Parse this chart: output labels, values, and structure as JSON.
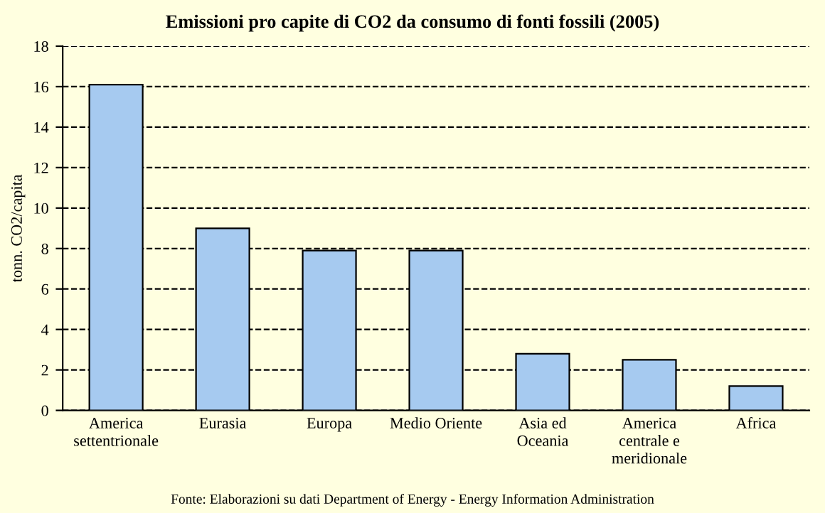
{
  "chart_data": {
    "type": "bar",
    "title": "Emissioni pro capite di CO2 da consumo di fonti fossili (2005)",
    "ylabel": "tonn. CO2/capita",
    "categories": [
      "America\nsettentrionale",
      "Eurasia",
      "Europa",
      "Medio Oriente",
      "Asia ed\nOceania",
      "America\ncentrale e\nmeridionale",
      "Africa"
    ],
    "values": [
      16.1,
      9.0,
      7.9,
      7.9,
      2.8,
      2.5,
      1.2
    ],
    "color": "#a6caf0",
    "ylim": [
      0,
      18
    ],
    "yticks": [
      0,
      2,
      4,
      6,
      8,
      10,
      12,
      14,
      16,
      18
    ],
    "grid": "y",
    "line_style": "dashed",
    "annotations": [
      "Fonte: Elaborazioni su dati Department of Energy - Energy Information Administration"
    ]
  }
}
